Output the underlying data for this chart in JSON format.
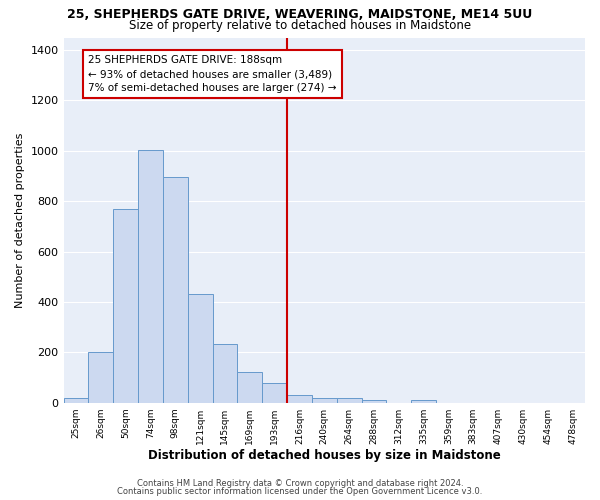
{
  "title_line1": "25, SHEPHERDS GATE DRIVE, WEAVERING, MAIDSTONE, ME14 5UU",
  "title_line2": "Size of property relative to detached houses in Maidstone",
  "xlabel": "Distribution of detached houses by size in Maidstone",
  "ylabel": "Number of detached properties",
  "categories": [
    "25sqm",
    "26sqm",
    "50sqm",
    "74sqm",
    "98sqm",
    "121sqm",
    "145sqm",
    "169sqm",
    "193sqm",
    "216sqm",
    "240sqm",
    "264sqm",
    "288sqm",
    "312sqm",
    "335sqm",
    "359sqm",
    "383sqm",
    "407sqm",
    "430sqm",
    "454sqm",
    "478sqm"
  ],
  "values": [
    20,
    200,
    770,
    1005,
    895,
    430,
    235,
    120,
    80,
    30,
    20,
    20,
    10,
    0,
    10,
    0,
    0,
    0,
    0,
    0,
    0
  ],
  "bar_color": "#ccd9f0",
  "bar_edge_color": "#6699cc",
  "vline_x_index": 8,
  "vline_color": "#cc0000",
  "annotation_text": "25 SHEPHERDS GATE DRIVE: 188sqm\n← 93% of detached houses are smaller (3,489)\n7% of semi-detached houses are larger (274) →",
  "annotation_box_color": "#ffffff",
  "annotation_border_color": "#cc0000",
  "ylim": [
    0,
    1450
  ],
  "yticks": [
    0,
    200,
    400,
    600,
    800,
    1000,
    1200,
    1400
  ],
  "fig_bg_color": "#ffffff",
  "plot_bg_color": "#e8eef8",
  "grid_color": "#ffffff",
  "footer_line1": "Contains HM Land Registry data © Crown copyright and database right 2024.",
  "footer_line2": "Contains public sector information licensed under the Open Government Licence v3.0."
}
